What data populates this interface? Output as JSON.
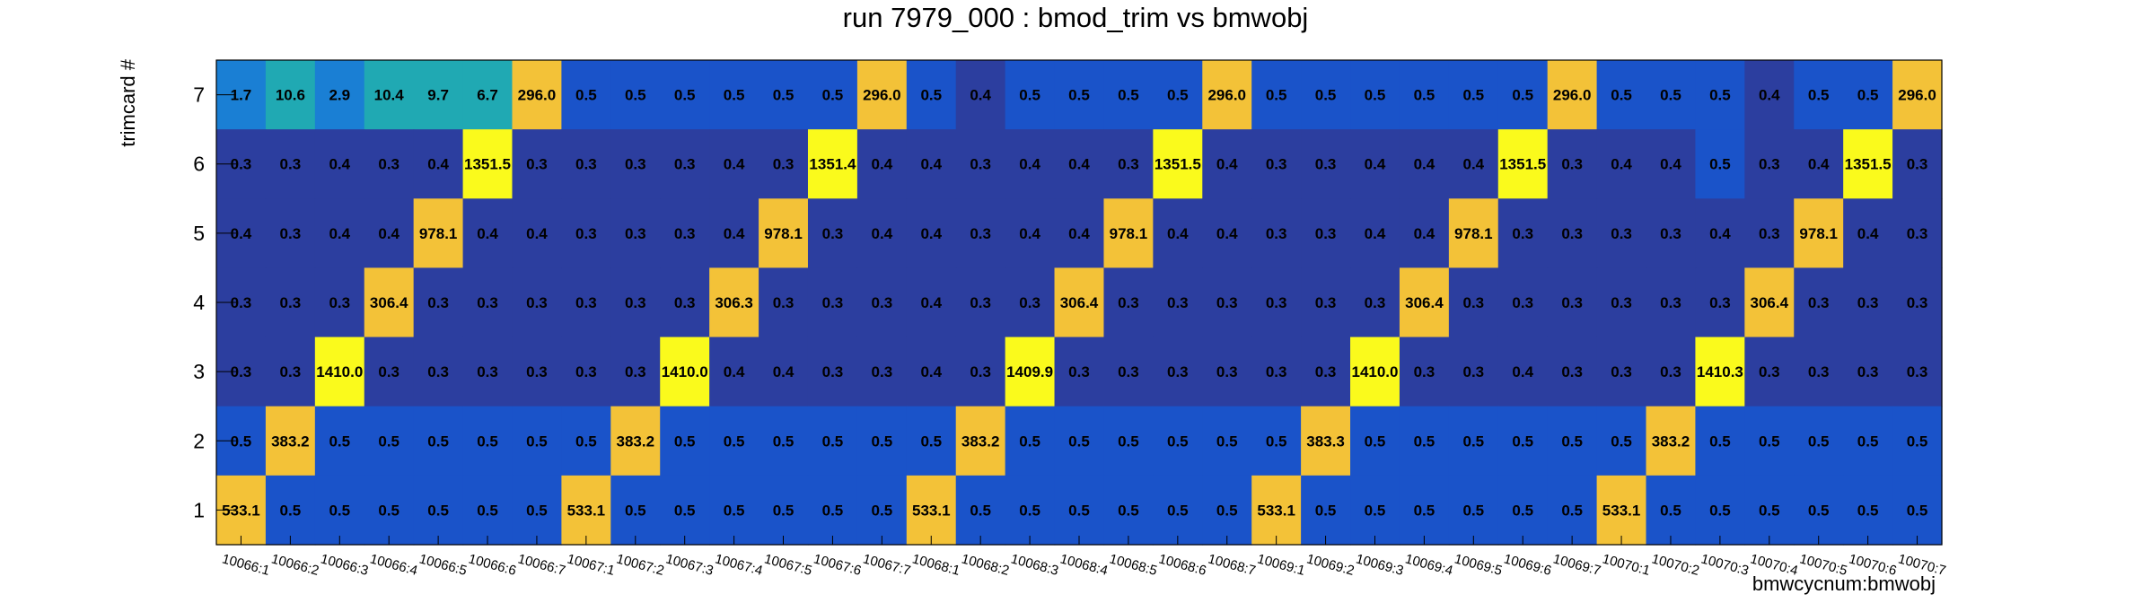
{
  "chart_data": {
    "type": "heatmap",
    "title": "run 7979_000 : bmod_trim vs bmwobj",
    "xlabel": "bmwcycnum:bmwobj",
    "ylabel": "trimcard #",
    "categories": [
      "10066:1",
      "10066:2",
      "10066:3",
      "10066:4",
      "10066:5",
      "10066:6",
      "10066:7",
      "10067:1",
      "10067:2",
      "10067:3",
      "10067:4",
      "10067:5",
      "10067:6",
      "10067:7",
      "10068:1",
      "10068:2",
      "10068:3",
      "10068:4",
      "10068:5",
      "10068:6",
      "10068:7",
      "10069:1",
      "10069:2",
      "10069:3",
      "10069:4",
      "10069:5",
      "10069:6",
      "10069:7",
      "10070:1",
      "10070:2",
      "10070:3",
      "10070:4",
      "10070:5",
      "10070:6",
      "10070:7"
    ],
    "y_categories": [
      "1",
      "2",
      "3",
      "4",
      "5",
      "6",
      "7"
    ],
    "rows": [
      {
        "y": "7",
        "values": [
          "1.7",
          "10.6",
          "2.9",
          "10.4",
          "9.7",
          "6.7",
          "296.0",
          "0.5",
          "0.5",
          "0.5",
          "0.5",
          "0.5",
          "0.5",
          "296.0",
          "0.5",
          "0.4",
          "0.5",
          "0.5",
          "0.5",
          "0.5",
          "296.0",
          "0.5",
          "0.5",
          "0.5",
          "0.5",
          "0.5",
          "0.5",
          "296.0",
          "0.5",
          "0.5",
          "0.5",
          "0.4",
          "0.5",
          "0.5",
          "296.0"
        ]
      },
      {
        "y": "6",
        "values": [
          "0.3",
          "0.3",
          "0.4",
          "0.3",
          "0.4",
          "1351.5",
          "0.3",
          "0.3",
          "0.3",
          "0.3",
          "0.4",
          "0.3",
          "1351.4",
          "0.4",
          "0.4",
          "0.3",
          "0.4",
          "0.4",
          "0.3",
          "1351.5",
          "0.4",
          "0.3",
          "0.3",
          "0.4",
          "0.4",
          "0.4",
          "1351.5",
          "0.3",
          "0.4",
          "0.4",
          "0.5",
          "0.3",
          "0.4",
          "1351.5",
          "0.3"
        ]
      },
      {
        "y": "5",
        "values": [
          "0.4",
          "0.3",
          "0.4",
          "0.4",
          "978.1",
          "0.4",
          "0.4",
          "0.3",
          "0.3",
          "0.3",
          "0.4",
          "978.1",
          "0.3",
          "0.4",
          "0.4",
          "0.3",
          "0.4",
          "0.4",
          "978.1",
          "0.4",
          "0.4",
          "0.3",
          "0.3",
          "0.4",
          "0.4",
          "978.1",
          "0.3",
          "0.3",
          "0.3",
          "0.3",
          "0.4",
          "0.3",
          "978.1",
          "0.4",
          "0.3"
        ]
      },
      {
        "y": "4",
        "values": [
          "0.3",
          "0.3",
          "0.3",
          "306.4",
          "0.3",
          "0.3",
          "0.3",
          "0.3",
          "0.3",
          "0.3",
          "306.3",
          "0.3",
          "0.3",
          "0.3",
          "0.4",
          "0.3",
          "0.3",
          "306.4",
          "0.3",
          "0.3",
          "0.3",
          "0.3",
          "0.3",
          "0.3",
          "306.4",
          "0.3",
          "0.3",
          "0.3",
          "0.3",
          "0.3",
          "0.3",
          "306.4",
          "0.3",
          "0.3",
          "0.3"
        ]
      },
      {
        "y": "3",
        "values": [
          "0.3",
          "0.3",
          "1410.0",
          "0.3",
          "0.3",
          "0.3",
          "0.3",
          "0.3",
          "0.3",
          "1410.0",
          "0.4",
          "0.4",
          "0.3",
          "0.3",
          "0.4",
          "0.3",
          "1409.9",
          "0.3",
          "0.3",
          "0.3",
          "0.3",
          "0.3",
          "0.3",
          "1410.0",
          "0.3",
          "0.3",
          "0.4",
          "0.3",
          "0.3",
          "0.3",
          "1410.3",
          "0.3",
          "0.3",
          "0.3",
          "0.3"
        ]
      },
      {
        "y": "2",
        "values": [
          "0.5",
          "383.2",
          "0.5",
          "0.5",
          "0.5",
          "0.5",
          "0.5",
          "0.5",
          "383.2",
          "0.5",
          "0.5",
          "0.5",
          "0.5",
          "0.5",
          "0.5",
          "383.2",
          "0.5",
          "0.5",
          "0.5",
          "0.5",
          "0.5",
          "0.5",
          "383.3",
          "0.5",
          "0.5",
          "0.5",
          "0.5",
          "0.5",
          "0.5",
          "383.2",
          "0.5",
          "0.5",
          "0.5",
          "0.5",
          "0.5"
        ]
      },
      {
        "y": "1",
        "values": [
          "533.1",
          "0.5",
          "0.5",
          "0.5",
          "0.5",
          "0.5",
          "0.5",
          "533.1",
          "0.5",
          "0.5",
          "0.5",
          "0.5",
          "0.5",
          "0.5",
          "533.1",
          "0.5",
          "0.5",
          "0.5",
          "0.5",
          "0.5",
          "0.5",
          "533.1",
          "0.5",
          "0.5",
          "0.5",
          "0.5",
          "0.5",
          "0.5",
          "533.1",
          "0.5",
          "0.5",
          "0.5",
          "0.5",
          "0.5",
          "0.5"
        ]
      }
    ],
    "colors": {
      "dark_blue": "#2c3e9f",
      "blue": "#1a53c9",
      "light_blue": "#1a7fd4",
      "teal": "#20a9b3",
      "orange": "#f3c238",
      "yellow": "#fafa1c"
    },
    "grid": false,
    "legend": "none"
  }
}
